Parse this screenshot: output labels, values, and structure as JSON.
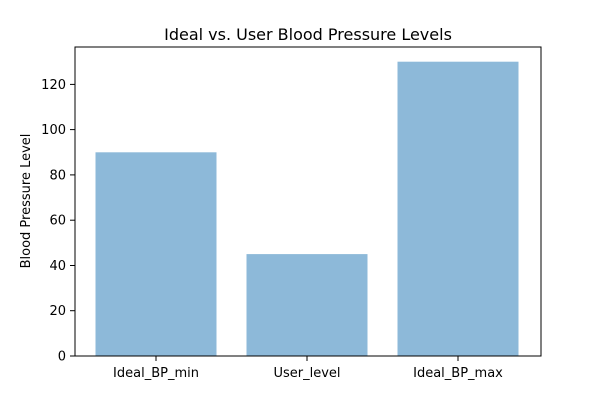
{
  "chart_data": {
    "type": "bar",
    "title": "Ideal vs. User Blood Pressure Levels",
    "xlabel": "",
    "ylabel": "Blood Pressure Level",
    "categories": [
      "Ideal_BP_min",
      "User_level",
      "Ideal_BP_max"
    ],
    "values": [
      90,
      45,
      130
    ],
    "ylim": [
      0,
      136.5
    ],
    "yticks": [
      0,
      20,
      40,
      60,
      80,
      100,
      120
    ],
    "grid": false,
    "legend": "none",
    "bar_color": "#8DB9D9",
    "bar_opacity": 1
  }
}
